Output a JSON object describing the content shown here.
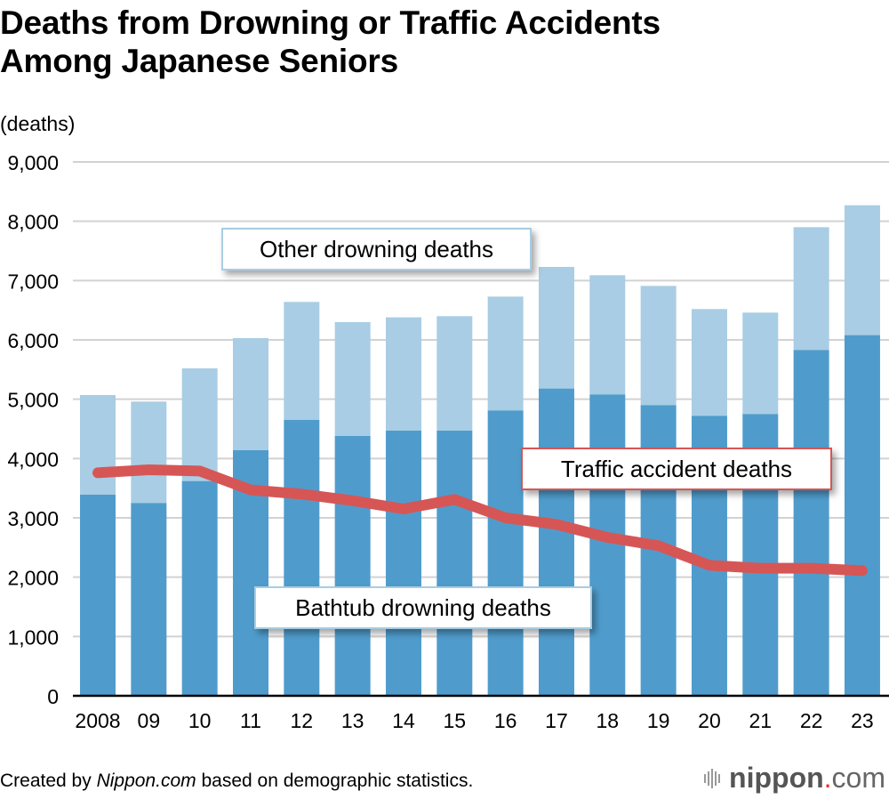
{
  "title_lines": [
    "Deaths from Drowning or Traffic Accidents",
    "Among Japanese Seniors"
  ],
  "unit_label": "(deaths)",
  "footer": {
    "prefix": "Created by ",
    "source_italic": "Nippon.com",
    "suffix": " based on demographic statistics."
  },
  "logo": {
    "name": "nippon",
    "dot": ".",
    "tld": "com"
  },
  "callouts": {
    "other": "Other drowning deaths",
    "traffic": "Traffic accident deaths",
    "bathtub": "Bathtub drowning deaths"
  },
  "colors": {
    "bathtub": "#4f9ccc",
    "other": "#a9cde4",
    "traffic": "#d65656",
    "grid": "#d2d2d2",
    "axis": "#000000"
  },
  "chart_data": {
    "type": "bar",
    "stacked": true,
    "title": "Deaths from Drowning or Traffic Accidents Among Japanese Seniors",
    "xlabel": "",
    "ylabel": "(deaths)",
    "ylim": [
      0,
      9000
    ],
    "yticks": [
      0,
      1000,
      2000,
      3000,
      4000,
      5000,
      6000,
      7000,
      8000,
      9000
    ],
    "ytick_labels": [
      "0",
      "1,000",
      "2,000",
      "3,000",
      "4,000",
      "5,000",
      "6,000",
      "7,000",
      "8,000",
      "9,000"
    ],
    "grid": true,
    "categories": [
      "2008",
      "09",
      "10",
      "11",
      "12",
      "13",
      "14",
      "15",
      "16",
      "17",
      "18",
      "19",
      "20",
      "21",
      "22",
      "23"
    ],
    "series": [
      {
        "name": "Bathtub drowning deaths",
        "type": "bar",
        "values": [
          3390,
          3250,
          3620,
          4140,
          4650,
          4380,
          4470,
          4470,
          4810,
          5180,
          5080,
          4900,
          4720,
          4750,
          5830,
          6080
        ]
      },
      {
        "name": "Other drowning deaths",
        "type": "bar",
        "values": [
          1680,
          1710,
          1900,
          1890,
          1990,
          1920,
          1910,
          1930,
          1920,
          2050,
          2010,
          2010,
          1800,
          1710,
          2070,
          2190
        ]
      },
      {
        "name": "Traffic accident deaths",
        "type": "line",
        "values": [
          3760,
          3810,
          3790,
          3470,
          3400,
          3290,
          3150,
          3310,
          3000,
          2890,
          2670,
          2530,
          2200,
          2150,
          2150,
          2110
        ]
      }
    ],
    "legend": "inline-callouts"
  }
}
